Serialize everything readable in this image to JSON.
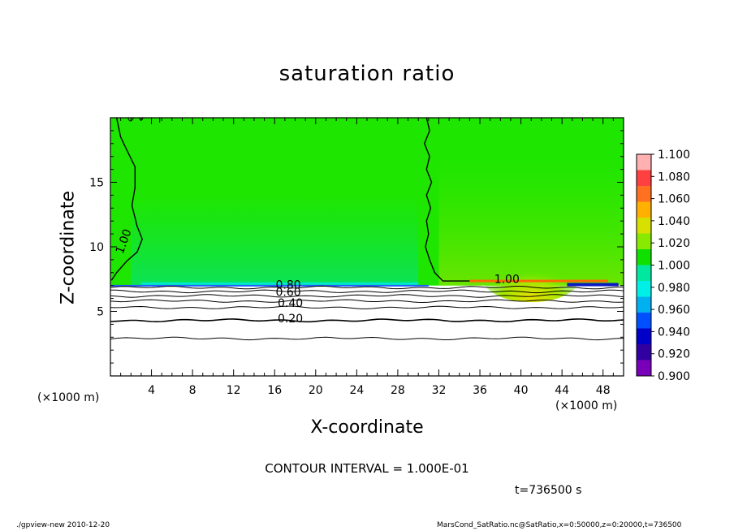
{
  "chart_data": {
    "type": "heatmap",
    "title": "saturation ratio",
    "xlabel": "X-coordinate",
    "ylabel": "Z-coordinate",
    "x_unit_label": "(×1000 m)",
    "y_unit_label": "(×1000 m)",
    "xlim": [
      0,
      50
    ],
    "ylim": [
      0,
      20
    ],
    "x_ticks": [
      4,
      8,
      12,
      16,
      20,
      24,
      28,
      32,
      36,
      40,
      44,
      48
    ],
    "y_ticks": [
      5,
      10,
      15
    ],
    "colorbar": {
      "min": 0.9,
      "max": 1.1,
      "labels": [
        "1.100",
        "1.080",
        "1.060",
        "1.040",
        "1.020",
        "1.000",
        "0.980",
        "0.960",
        "0.940",
        "0.920",
        "0.900"
      ],
      "colors": [
        "#ffb0b0",
        "#ff4040",
        "#ff7020",
        "#ffb000",
        "#d8e000",
        "#88ea00",
        "#10e000",
        "#00e8a0",
        "#00f0e8",
        "#00b0f0",
        "#0050ff",
        "#0000c8",
        "#3000a0",
        "#7800b8"
      ]
    },
    "contour_labels": [
      "1.00",
      "1.00",
      "0.80",
      "0.60",
      "0.40",
      "0.20"
    ],
    "contour_interval": "CONTOUR INTERVAL = 1.000E-01",
    "time": "t=736500 s"
  },
  "footer": {
    "left": "./gpview-new   2010-12-20",
    "right": "MarsCond_SatRatio.nc@SatRatio,x=0:50000,z=0:20000,t=736500"
  }
}
